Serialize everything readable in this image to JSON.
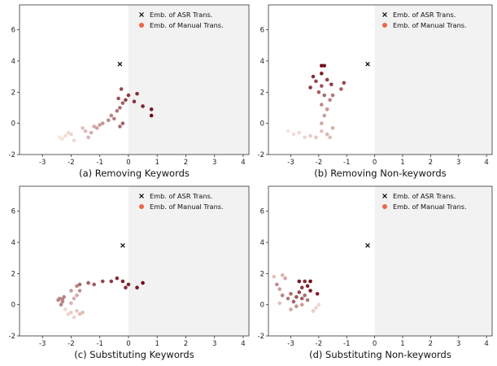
{
  "chart_data": [
    {
      "type": "scatter",
      "caption": "(a) Removing Keywords",
      "xlim": [
        -3.8,
        4.2
      ],
      "ylim": [
        -2.0,
        7.6
      ],
      "xticks": [
        "-3",
        "-2",
        "-1",
        "0",
        "1",
        "2",
        "3",
        "4"
      ],
      "xtick_values": [
        -3,
        -2,
        -1,
        0,
        1,
        2,
        3,
        4
      ],
      "yticks": [
        "-2",
        "0",
        "2",
        "4",
        "6"
      ],
      "ytick_values": [
        -2,
        0,
        2,
        4,
        6
      ],
      "shaded_region": "x >= 0",
      "legend_position": "top-right",
      "legend": [
        "Emb. of ASR Trans.",
        "Emb. of Manual Trans."
      ],
      "asr_point": [
        -0.3,
        3.8
      ],
      "manual_points": [
        [
          -2.3,
          -1.0,
          0.05
        ],
        [
          -2.2,
          -0.8,
          0.08
        ],
        [
          -2.1,
          -0.6,
          0.1
        ],
        [
          -2.0,
          -0.7,
          0.12
        ],
        [
          -1.9,
          -1.1,
          0.1
        ],
        [
          -2.4,
          -0.9,
          0.05
        ],
        [
          -1.6,
          -0.3,
          0.2
        ],
        [
          -1.5,
          -0.5,
          0.22
        ],
        [
          -1.4,
          -0.9,
          0.25
        ],
        [
          -1.3,
          -0.6,
          0.28
        ],
        [
          -1.2,
          -0.2,
          0.3
        ],
        [
          -1.1,
          -0.3,
          0.33
        ],
        [
          -1.0,
          -0.1,
          0.35
        ],
        [
          -0.9,
          0.0,
          0.38
        ],
        [
          -0.7,
          0.2,
          0.42
        ],
        [
          -0.6,
          0.5,
          0.45
        ],
        [
          -0.5,
          0.3,
          0.48
        ],
        [
          -0.4,
          0.8,
          0.5
        ],
        [
          -0.3,
          1.0,
          0.55
        ],
        [
          -0.2,
          1.3,
          0.6
        ],
        [
          -0.35,
          1.6,
          0.65
        ],
        [
          -0.25,
          2.2,
          0.7
        ],
        [
          -0.1,
          1.5,
          0.72
        ],
        [
          0.0,
          1.8,
          0.75
        ],
        [
          0.2,
          1.4,
          0.78
        ],
        [
          0.3,
          1.9,
          0.82
        ],
        [
          0.5,
          1.1,
          0.85
        ],
        [
          0.8,
          0.9,
          0.9
        ],
        [
          0.8,
          0.5,
          0.95
        ],
        [
          -0.2,
          0.0,
          0.6
        ],
        [
          -0.3,
          -0.2,
          0.55
        ]
      ]
    },
    {
      "type": "scatter",
      "caption": "(b) Removing Non-keywords",
      "xlim": [
        -3.8,
        4.2
      ],
      "ylim": [
        -2.0,
        7.6
      ],
      "xticks": [
        "-3",
        "-2",
        "-1",
        "0",
        "1",
        "2",
        "3",
        "4"
      ],
      "xtick_values": [
        -3,
        -2,
        -1,
        0,
        1,
        2,
        3,
        4
      ],
      "yticks": [
        "-2",
        "0",
        "2",
        "4",
        "6"
      ],
      "ytick_values": [
        -2,
        0,
        2,
        4,
        6
      ],
      "shaded_region": "x >= 0",
      "legend_position": "top-right",
      "legend": [
        "Emb. of ASR Trans.",
        "Emb. of Manual Trans."
      ],
      "asr_point": [
        -0.25,
        3.8
      ],
      "manual_points": [
        [
          -3.1,
          -0.5,
          0.05
        ],
        [
          -2.9,
          -0.7,
          0.08
        ],
        [
          -2.7,
          -0.6,
          0.1
        ],
        [
          -2.5,
          -0.9,
          0.12
        ],
        [
          -2.3,
          -0.8,
          0.15
        ],
        [
          -2.1,
          -0.9,
          0.18
        ],
        [
          -1.9,
          -0.5,
          0.2
        ],
        [
          -1.7,
          -0.7,
          0.25
        ],
        [
          -1.6,
          -0.9,
          0.22
        ],
        [
          -1.5,
          -0.3,
          0.28
        ],
        [
          -1.9,
          0.0,
          0.3
        ],
        [
          -1.8,
          0.5,
          0.35
        ],
        [
          -1.7,
          0.9,
          0.38
        ],
        [
          -1.9,
          1.2,
          0.42
        ],
        [
          -1.6,
          1.5,
          0.45
        ],
        [
          -1.5,
          1.8,
          0.5
        ],
        [
          -1.8,
          1.8,
          0.55
        ],
        [
          -2.0,
          2.0,
          0.6
        ],
        [
          -1.9,
          2.4,
          0.65
        ],
        [
          -2.1,
          2.7,
          0.7
        ],
        [
          -1.7,
          2.8,
          0.72
        ],
        [
          -2.3,
          2.3,
          0.75
        ],
        [
          -2.2,
          3.0,
          0.8
        ],
        [
          -1.9,
          3.2,
          0.85
        ],
        [
          -1.8,
          3.7,
          0.9
        ],
        [
          -1.9,
          3.7,
          0.95
        ],
        [
          -1.1,
          2.6,
          0.7
        ],
        [
          -1.2,
          2.2,
          0.6
        ],
        [
          -1.55,
          2.5,
          0.75
        ]
      ]
    },
    {
      "type": "scatter",
      "caption": "(c) Substituting Keywords",
      "xlim": [
        -3.8,
        4.2
      ],
      "ylim": [
        -2.0,
        7.6
      ],
      "xticks": [
        "-3",
        "-2",
        "-1",
        "0",
        "1",
        "2",
        "3",
        "4"
      ],
      "xtick_values": [
        -3,
        -2,
        -1,
        0,
        1,
        2,
        3,
        4
      ],
      "yticks": [
        "-2",
        "0",
        "2",
        "4",
        "6"
      ],
      "ytick_values": [
        -2,
        0,
        2,
        4,
        6
      ],
      "shaded_region": "x >= 0",
      "legend_position": "top-right",
      "legend": [
        "Emb. of ASR Trans.",
        "Emb. of Manual Trans."
      ],
      "asr_point": [
        -0.2,
        3.8
      ],
      "manual_points": [
        [
          -2.4,
          0.4,
          0.45
        ],
        [
          -2.3,
          0.2,
          0.45
        ],
        [
          -2.35,
          0.0,
          0.45
        ],
        [
          -2.25,
          0.5,
          0.45
        ],
        [
          -2.45,
          0.3,
          0.45
        ],
        [
          -2.3,
          0.35,
          0.45
        ],
        [
          -2.2,
          -0.3,
          0.1
        ],
        [
          -2.1,
          -0.6,
          0.12
        ],
        [
          -2.0,
          -0.5,
          0.15
        ],
        [
          -1.9,
          -0.8,
          0.12
        ],
        [
          -1.8,
          -0.4,
          0.18
        ],
        [
          -1.7,
          -0.6,
          0.2
        ],
        [
          -1.6,
          -0.5,
          0.22
        ],
        [
          -2.0,
          0.1,
          0.25
        ],
        [
          -1.9,
          0.4,
          0.28
        ],
        [
          -1.8,
          0.6,
          0.3
        ],
        [
          -1.7,
          0.9,
          0.4
        ],
        [
          -2.0,
          0.9,
          0.35
        ],
        [
          -1.8,
          1.2,
          0.45
        ],
        [
          -1.7,
          1.3,
          0.55
        ],
        [
          -1.4,
          1.4,
          0.6
        ],
        [
          -1.2,
          1.3,
          0.62
        ],
        [
          -0.9,
          1.5,
          0.7
        ],
        [
          -0.6,
          1.5,
          0.75
        ],
        [
          -0.4,
          1.7,
          0.8
        ],
        [
          -0.2,
          1.5,
          0.85
        ],
        [
          0.0,
          1.3,
          0.85
        ],
        [
          0.3,
          1.1,
          0.9
        ],
        [
          0.5,
          1.4,
          0.95
        ],
        [
          -0.1,
          1.1,
          0.8
        ]
      ]
    },
    {
      "type": "scatter",
      "caption": "(d) Substituting Non-keywords",
      "xlim": [
        -3.8,
        4.2
      ],
      "ylim": [
        -2.0,
        7.6
      ],
      "xticks": [
        "-3",
        "-2",
        "-1",
        "0",
        "1",
        "2",
        "3",
        "4"
      ],
      "xtick_values": [
        -3,
        -2,
        -1,
        0,
        1,
        2,
        3,
        4
      ],
      "yticks": [
        "-2",
        "0",
        "2",
        "4",
        "6"
      ],
      "ytick_values": [
        -2,
        0,
        2,
        4,
        6
      ],
      "shaded_region": "x >= 0",
      "legend_position": "top-right",
      "legend": [
        "Emb. of ASR Trans.",
        "Emb. of Manual Trans."
      ],
      "asr_point": [
        -0.25,
        3.8
      ],
      "manual_points": [
        [
          -3.5,
          1.3,
          0.4
        ],
        [
          -3.4,
          1.0,
          0.35
        ],
        [
          -3.3,
          0.6,
          0.45
        ],
        [
          -3.1,
          0.4,
          0.5
        ],
        [
          -3.0,
          0.7,
          0.55
        ],
        [
          -2.9,
          0.2,
          0.6
        ],
        [
          -2.8,
          0.5,
          0.65
        ],
        [
          -2.7,
          0.8,
          0.7
        ],
        [
          -2.6,
          1.1,
          0.75
        ],
        [
          -2.5,
          1.5,
          0.8
        ],
        [
          -2.4,
          1.2,
          0.85
        ],
        [
          -2.3,
          0.9,
          0.9
        ],
        [
          -2.6,
          0.4,
          0.6
        ],
        [
          -2.8,
          -0.1,
          0.4
        ],
        [
          -3.0,
          -0.3,
          0.3
        ],
        [
          -3.2,
          1.7,
          0.3
        ],
        [
          -3.3,
          1.9,
          0.25
        ],
        [
          -3.6,
          1.8,
          0.2
        ],
        [
          -2.5,
          0.6,
          0.55
        ],
        [
          -2.4,
          0.3,
          0.5
        ],
        [
          -2.2,
          -0.4,
          0.15
        ],
        [
          -2.1,
          -0.2,
          0.12
        ],
        [
          -2.0,
          0.0,
          0.1
        ],
        [
          -2.05,
          0.7,
          0.85
        ],
        [
          -2.3,
          1.5,
          0.95
        ],
        [
          -2.7,
          1.5,
          0.9
        ],
        [
          -3.4,
          0.1,
          0.2
        ],
        [
          -2.6,
          0.0,
          0.35
        ]
      ]
    }
  ]
}
